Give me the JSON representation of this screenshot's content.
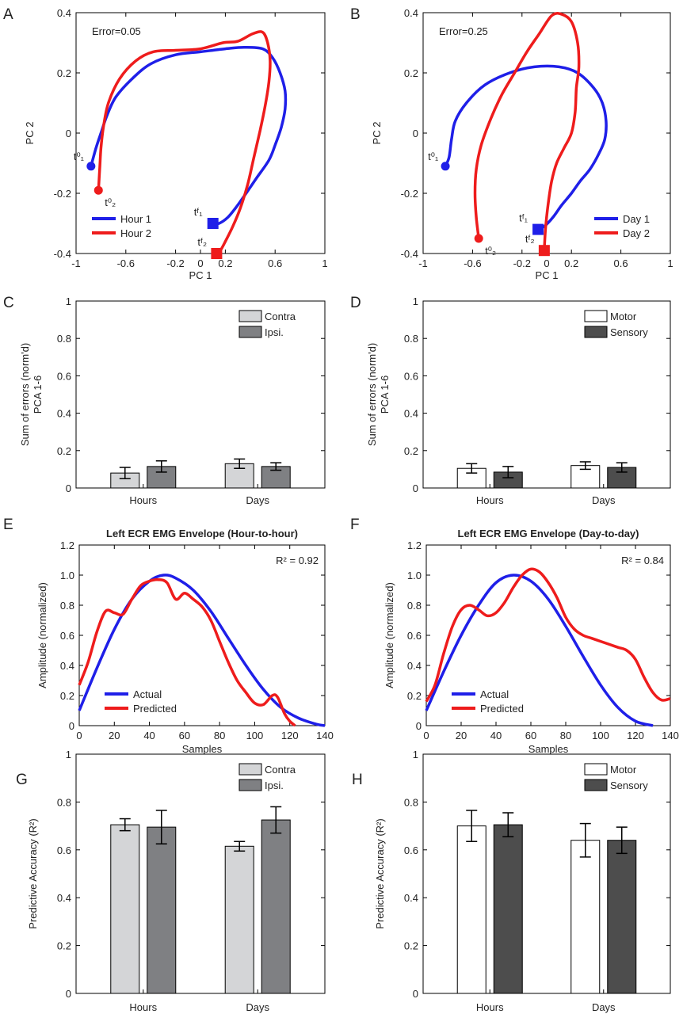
{
  "panels": {
    "A": {
      "letter": "A"
    },
    "B": {
      "letter": "B"
    },
    "C": {
      "letter": "C"
    },
    "D": {
      "letter": "D"
    },
    "E": {
      "letter": "E"
    },
    "F": {
      "letter": "F"
    },
    "G": {
      "letter": "G"
    },
    "H": {
      "letter": "H"
    }
  },
  "colors": {
    "blue": "#1f1fe8",
    "red": "#ee1c1c",
    "contra": "#d4d5d7",
    "ipsi": "#7f8083",
    "motor": "#ffffff",
    "sensory": "#4d4d4d"
  },
  "chart_data": [
    {
      "id": "A",
      "type": "line",
      "xlabel": "PC 1",
      "ylabel": "PC 2",
      "xlim": [
        -1,
        1
      ],
      "ylim": [
        -0.4,
        0.4
      ],
      "xticks": [
        "-1",
        "-0.6",
        "-0.2",
        "0.2",
        "0.6",
        "1"
      ],
      "xtick_values": [
        -1,
        -0.6,
        -0.2,
        0.2,
        0.6,
        1
      ],
      "yticks": [
        "-0.4",
        "-0.2",
        "0",
        "0.2",
        "0.4"
      ],
      "ytick_values": [
        -0.4,
        -0.2,
        0,
        0.2,
        0.4
      ],
      "extra_xticks": [
        "0"
      ],
      "extra_xtick_values": [
        0
      ],
      "annotation": "Error=0.05",
      "legend": "bottom-left",
      "series": [
        {
          "name": "Hour 1",
          "color": "blue",
          "x": [
            -0.88,
            -0.84,
            -0.8,
            -0.75,
            -0.68,
            -0.55,
            -0.4,
            -0.2,
            0.0,
            0.2,
            0.35,
            0.5,
            0.58,
            0.64,
            0.68,
            0.68,
            0.65,
            0.6,
            0.55,
            0.45,
            0.35,
            0.28,
            0.22,
            0.15,
            0.1
          ],
          "y": [
            -0.11,
            -0.05,
            0.0,
            0.06,
            0.12,
            0.18,
            0.23,
            0.26,
            0.27,
            0.28,
            0.285,
            0.28,
            0.25,
            0.2,
            0.14,
            0.08,
            0.02,
            -0.04,
            -0.09,
            -0.15,
            -0.21,
            -0.25,
            -0.28,
            -0.3,
            -0.3
          ],
          "start_label": "t⁰₁",
          "end_label": "tᶠ₁"
        },
        {
          "name": "Hour 2",
          "color": "red",
          "x": [
            -0.82,
            -0.81,
            -0.8,
            -0.78,
            -0.74,
            -0.65,
            -0.52,
            -0.38,
            -0.2,
            0.0,
            0.18,
            0.3,
            0.42,
            0.5,
            0.54,
            0.56,
            0.55,
            0.52,
            0.48,
            0.43,
            0.38,
            0.32,
            0.26,
            0.2,
            0.16,
            0.13
          ],
          "y": [
            -0.19,
            -0.12,
            -0.05,
            0.02,
            0.1,
            0.18,
            0.24,
            0.27,
            0.275,
            0.28,
            0.3,
            0.305,
            0.33,
            0.335,
            0.3,
            0.24,
            0.17,
            0.09,
            0.01,
            -0.08,
            -0.17,
            -0.25,
            -0.31,
            -0.36,
            -0.39,
            -0.4
          ],
          "start_label": "t⁰₂",
          "end_label": "tᶠ₂"
        }
      ]
    },
    {
      "id": "B",
      "type": "line",
      "xlabel": "PC 1",
      "ylabel": "PC 2",
      "xlim": [
        -1,
        1
      ],
      "ylim": [
        -0.4,
        0.4
      ],
      "xticks": [
        "-1",
        "-0.6",
        "-0.2",
        "0.2",
        "0.6",
        "1"
      ],
      "xtick_values": [
        -1,
        -0.6,
        -0.2,
        0.2,
        0.6,
        1
      ],
      "yticks": [
        "-0.4",
        "-0.2",
        "0",
        "0.2",
        "0.4"
      ],
      "ytick_values": [
        -0.4,
        -0.2,
        0,
        0.2,
        0.4
      ],
      "extra_xticks": [
        "0"
      ],
      "extra_xtick_values": [
        0
      ],
      "annotation": "Error=0.25",
      "legend": "bottom-right",
      "series": [
        {
          "name": "Day 1",
          "color": "blue",
          "x": [
            -0.82,
            -0.79,
            -0.77,
            -0.74,
            -0.65,
            -0.5,
            -0.3,
            -0.1,
            0.1,
            0.25,
            0.38,
            0.45,
            0.48,
            0.47,
            0.42,
            0.35,
            0.27,
            0.2,
            0.12,
            0.05,
            -0.02,
            -0.07
          ],
          "y": [
            -0.11,
            -0.08,
            -0.02,
            0.04,
            0.1,
            0.16,
            0.2,
            0.22,
            0.22,
            0.2,
            0.15,
            0.1,
            0.04,
            -0.02,
            -0.07,
            -0.12,
            -0.16,
            -0.2,
            -0.24,
            -0.28,
            -0.31,
            -0.32
          ],
          "start_label": "t⁰₁",
          "end_label": "tᶠ₁"
        },
        {
          "name": "Day 2",
          "color": "red",
          "x": [
            -0.55,
            -0.57,
            -0.58,
            -0.57,
            -0.53,
            -0.45,
            -0.36,
            -0.26,
            -0.16,
            -0.06,
            0.04,
            0.12,
            0.2,
            0.25,
            0.26,
            0.24,
            0.23,
            0.2,
            0.14,
            0.08,
            0.04,
            0.01,
            -0.01,
            -0.02
          ],
          "y": [
            -0.35,
            -0.28,
            -0.2,
            -0.12,
            -0.04,
            0.05,
            0.13,
            0.2,
            0.27,
            0.33,
            0.39,
            0.395,
            0.37,
            0.3,
            0.22,
            0.15,
            0.07,
            0.0,
            -0.05,
            -0.1,
            -0.16,
            -0.24,
            -0.32,
            -0.39
          ],
          "start_label": "t⁰₂",
          "end_label": "tᶠ₂"
        }
      ]
    },
    {
      "id": "C",
      "type": "bar",
      "ylabel": "Sum of errors (norm'd)",
      "ylabel2": "PCA 1-6",
      "ylim": [
        0,
        1
      ],
      "yticks": [
        "0",
        "0.2",
        "0.4",
        "0.6",
        "0.8",
        "1"
      ],
      "ytick_values": [
        0,
        0.2,
        0.4,
        0.6,
        0.8,
        1
      ],
      "categories": [
        "Hours",
        "Days"
      ],
      "legend": "top-right",
      "series": [
        {
          "name": "Contra",
          "color": "contra",
          "values": [
            0.08,
            0.13
          ],
          "errors": [
            0.03,
            0.025
          ]
        },
        {
          "name": "Ipsi.",
          "color": "ipsi",
          "values": [
            0.115,
            0.115
          ],
          "errors": [
            0.03,
            0.02
          ]
        }
      ]
    },
    {
      "id": "D",
      "type": "bar",
      "ylabel": "Sum of errors (norm'd)",
      "ylabel2": "PCA 1-6",
      "ylim": [
        0,
        1
      ],
      "yticks": [
        "0",
        "0.2",
        "0.4",
        "0.6",
        "0.8",
        "1"
      ],
      "ytick_values": [
        0,
        0.2,
        0.4,
        0.6,
        0.8,
        1
      ],
      "categories": [
        "Hours",
        "Days"
      ],
      "legend": "top-right",
      "series": [
        {
          "name": "Motor",
          "color": "motor",
          "values": [
            0.105,
            0.12
          ],
          "errors": [
            0.025,
            0.02
          ]
        },
        {
          "name": "Sensory",
          "color": "sensory",
          "values": [
            0.085,
            0.11
          ],
          "errors": [
            0.03,
            0.025
          ]
        }
      ]
    },
    {
      "id": "E",
      "type": "line",
      "title": "Left ECR EMG Envelope (Hour-to-hour)",
      "xlabel": "Samples",
      "ylabel": "Amplitude (normalized)",
      "xlim": [
        0,
        140
      ],
      "ylim": [
        0,
        1.2
      ],
      "xticks": [
        "0",
        "20",
        "40",
        "60",
        "80",
        "100",
        "120",
        "140"
      ],
      "xtick_values": [
        0,
        20,
        40,
        60,
        80,
        100,
        120,
        140
      ],
      "yticks": [
        "0",
        "0.2",
        "0.4",
        "0.6",
        "0.8",
        "1.0",
        "1.2"
      ],
      "ytick_values": [
        0,
        0.2,
        0.4,
        0.6,
        0.8,
        1.0,
        1.2
      ],
      "annotation": "R² = 0.92",
      "legend": "bottom-left",
      "series": [
        {
          "name": "Actual",
          "color": "blue",
          "x": [
            0,
            10,
            20,
            30,
            40,
            48,
            55,
            65,
            75,
            85,
            95,
            105,
            115,
            125,
            135,
            140
          ],
          "y": [
            0.1,
            0.38,
            0.64,
            0.84,
            0.96,
            1.0,
            0.98,
            0.9,
            0.76,
            0.58,
            0.4,
            0.24,
            0.12,
            0.05,
            0.01,
            0.0
          ]
        },
        {
          "name": "Predicted",
          "color": "red",
          "x": [
            0,
            5,
            10,
            15,
            20,
            25,
            30,
            35,
            40,
            45,
            50,
            55,
            60,
            65,
            70,
            75,
            80,
            85,
            90,
            95,
            100,
            105,
            110,
            113,
            117,
            120,
            123
          ],
          "y": [
            0.27,
            0.42,
            0.62,
            0.76,
            0.75,
            0.74,
            0.84,
            0.93,
            0.96,
            0.97,
            0.95,
            0.84,
            0.88,
            0.84,
            0.79,
            0.7,
            0.56,
            0.42,
            0.3,
            0.22,
            0.15,
            0.14,
            0.2,
            0.19,
            0.08,
            0.03,
            0.0
          ]
        }
      ]
    },
    {
      "id": "F",
      "type": "line",
      "title": "Left ECR EMG Envelope (Day-to-day)",
      "xlabel": "Samples",
      "ylabel": "Amplitude (normalized)",
      "xlim": [
        0,
        140
      ],
      "ylim": [
        0,
        1.2
      ],
      "xticks": [
        "0",
        "20",
        "40",
        "60",
        "80",
        "100",
        "120",
        "140"
      ],
      "xtick_values": [
        0,
        20,
        40,
        60,
        80,
        100,
        120,
        140
      ],
      "yticks": [
        "0",
        "0.2",
        "0.4",
        "0.6",
        "0.8",
        "1.0",
        "1.2"
      ],
      "ytick_values": [
        0,
        0.2,
        0.4,
        0.6,
        0.8,
        1.0,
        1.2
      ],
      "annotation": "R² = 0.84",
      "legend": "bottom-left",
      "series": [
        {
          "name": "Actual",
          "color": "blue",
          "x": [
            0,
            10,
            20,
            30,
            40,
            50,
            60,
            70,
            80,
            90,
            100,
            110,
            120,
            130
          ],
          "y": [
            0.1,
            0.36,
            0.6,
            0.8,
            0.95,
            1.0,
            0.96,
            0.84,
            0.66,
            0.46,
            0.27,
            0.12,
            0.03,
            0.0
          ]
        },
        {
          "name": "Predicted",
          "color": "red",
          "x": [
            0,
            5,
            10,
            15,
            20,
            25,
            30,
            35,
            40,
            45,
            50,
            55,
            60,
            65,
            70,
            75,
            80,
            85,
            90,
            95,
            100,
            105,
            110,
            115,
            120,
            125,
            130,
            135,
            140
          ],
          "y": [
            0.16,
            0.27,
            0.48,
            0.66,
            0.77,
            0.8,
            0.77,
            0.73,
            0.75,
            0.82,
            0.92,
            1.0,
            1.04,
            1.02,
            0.95,
            0.85,
            0.72,
            0.64,
            0.6,
            0.58,
            0.56,
            0.54,
            0.52,
            0.5,
            0.44,
            0.32,
            0.22,
            0.17,
            0.18
          ]
        }
      ]
    },
    {
      "id": "G",
      "type": "bar",
      "ylabel": "Predictive Accuracy (R²)",
      "ylim": [
        0,
        1
      ],
      "yticks": [
        "0",
        "0.2",
        "0.4",
        "0.6",
        "0.8",
        "1"
      ],
      "ytick_values": [
        0,
        0.2,
        0.4,
        0.6,
        0.8,
        1
      ],
      "categories": [
        "Hours",
        "Days"
      ],
      "legend": "top-right",
      "series": [
        {
          "name": "Contra",
          "color": "contra",
          "values": [
            0.705,
            0.615
          ],
          "errors": [
            0.025,
            0.02
          ]
        },
        {
          "name": "Ipsi.",
          "color": "ipsi",
          "values": [
            0.695,
            0.725
          ],
          "errors": [
            0.07,
            0.055
          ]
        }
      ]
    },
    {
      "id": "H",
      "type": "bar",
      "ylabel": "Predictive Accuracy (R²)",
      "ylim": [
        0,
        1
      ],
      "yticks": [
        "0",
        "0.2",
        "0.4",
        "0.6",
        "0.8",
        "1"
      ],
      "ytick_values": [
        0,
        0.2,
        0.4,
        0.6,
        0.8,
        1
      ],
      "categories": [
        "Hours",
        "Days"
      ],
      "legend": "top-right",
      "series": [
        {
          "name": "Motor",
          "color": "motor",
          "values": [
            0.7,
            0.64
          ],
          "errors": [
            0.065,
            0.07
          ]
        },
        {
          "name": "Sensory",
          "color": "sensory",
          "values": [
            0.705,
            0.64
          ],
          "errors": [
            0.05,
            0.055
          ]
        }
      ]
    }
  ]
}
